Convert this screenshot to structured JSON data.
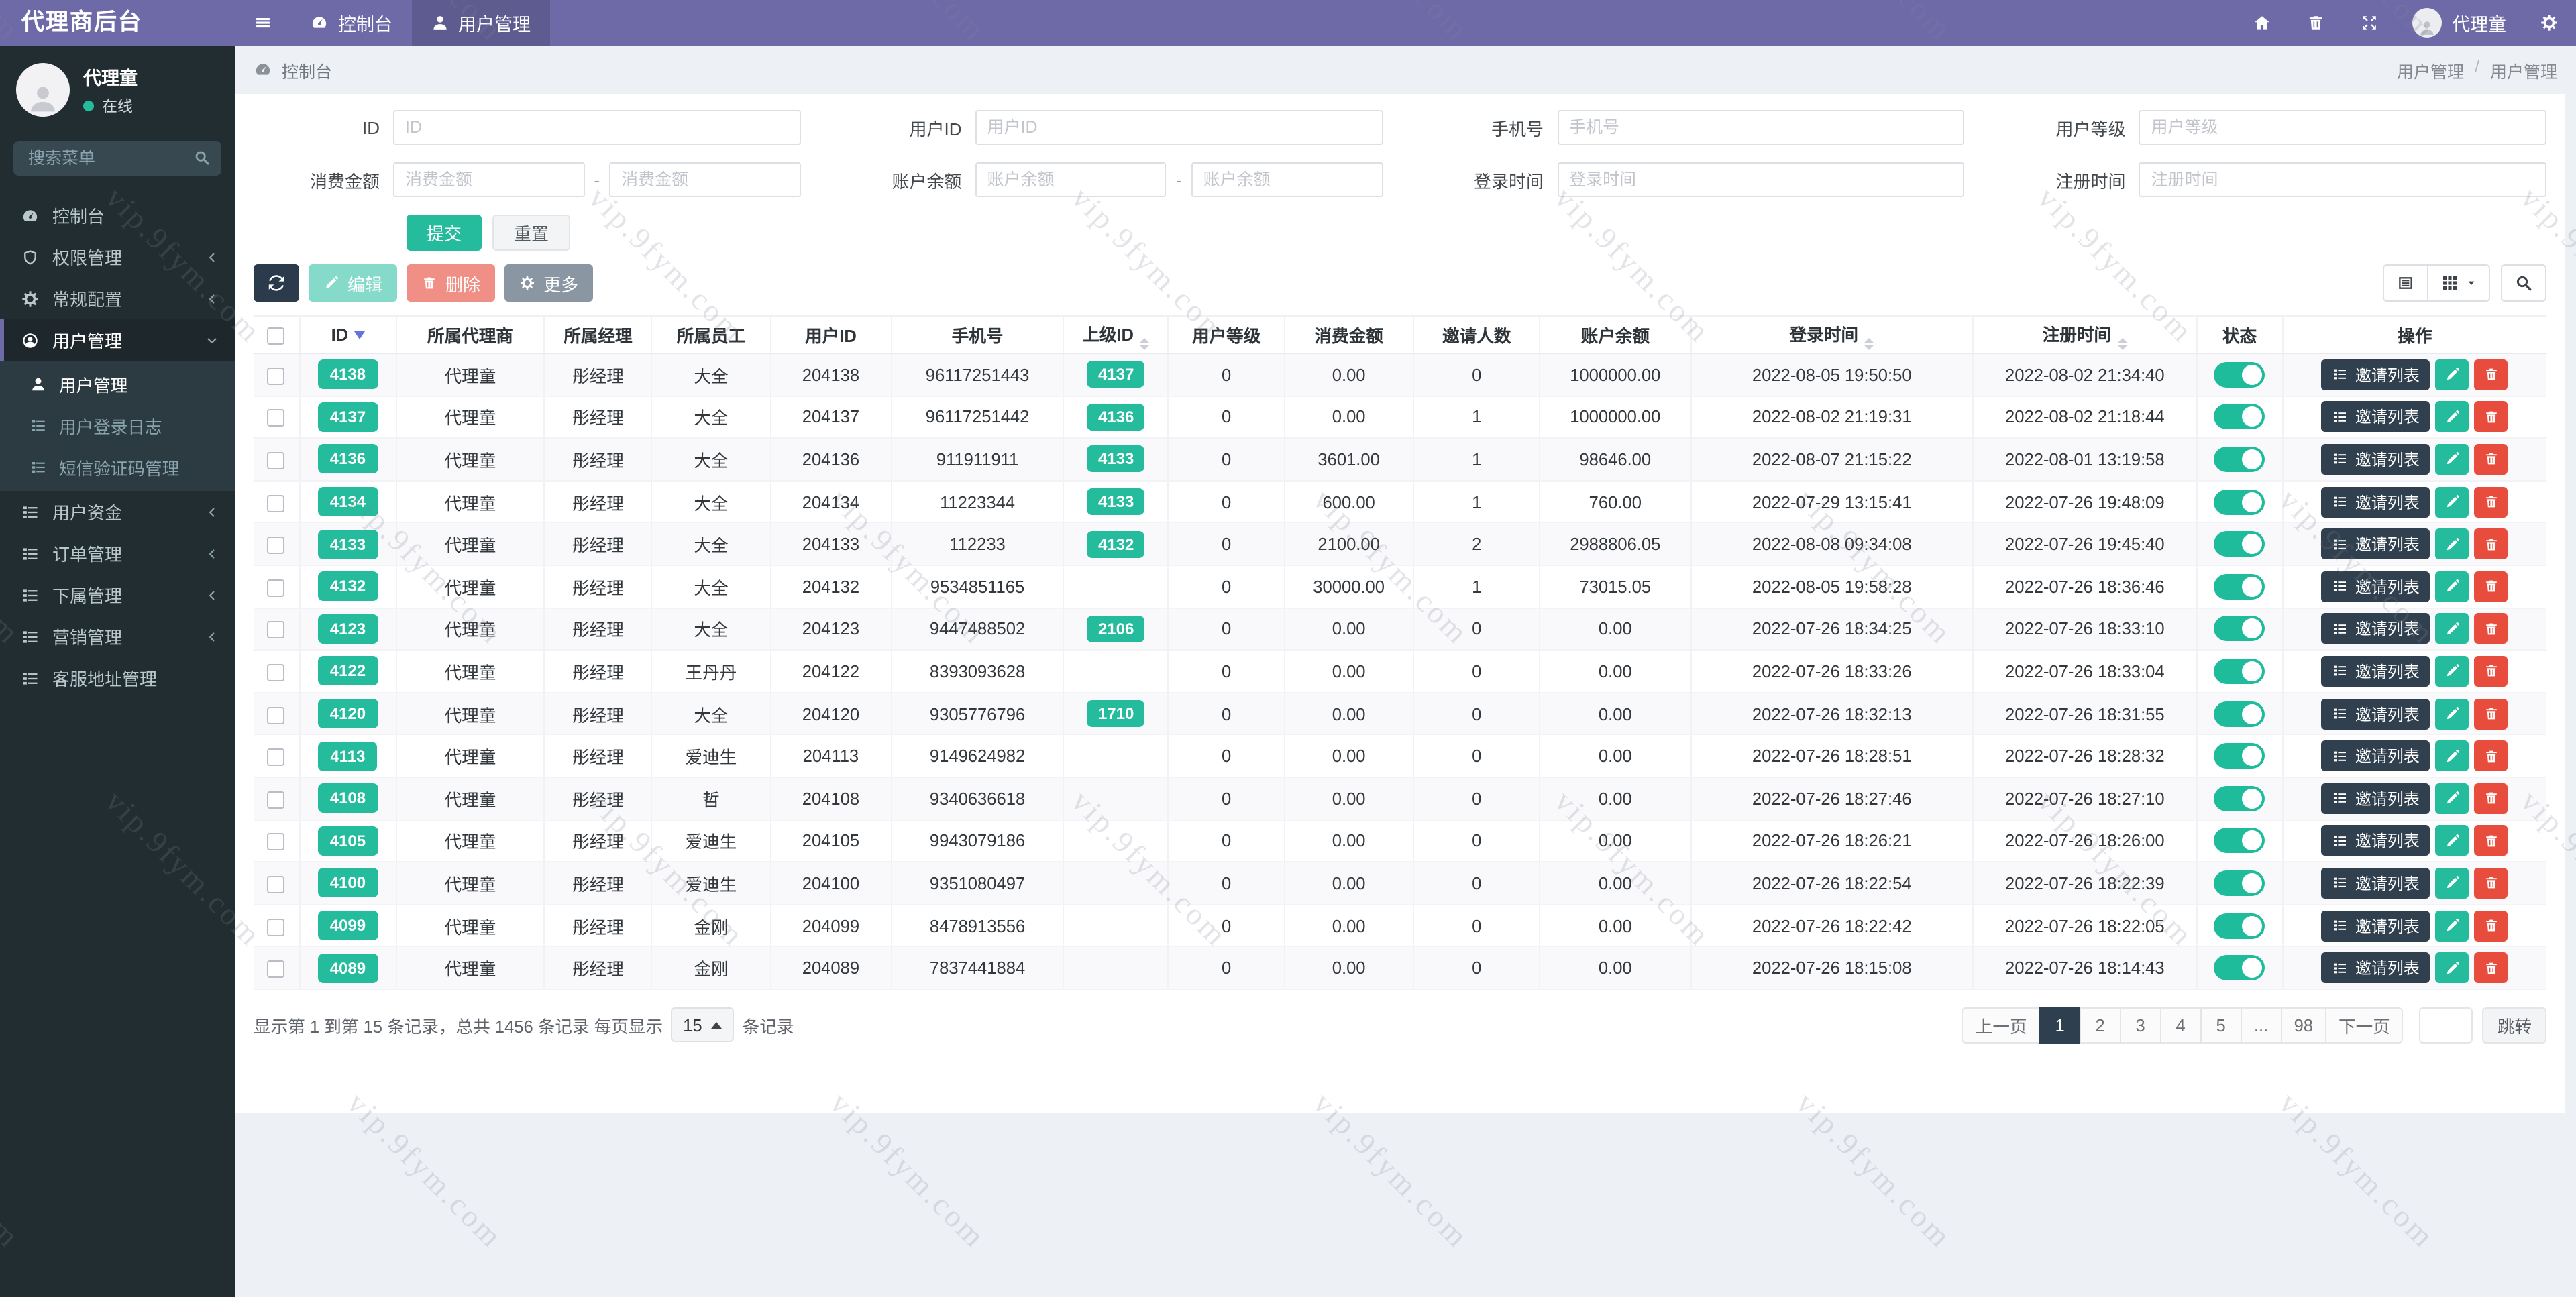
{
  "colors": {
    "navbar_purple": "#6e6aa8",
    "sidebar_dark": "#222d32",
    "accent_teal": "#25bc9d",
    "navy": "#2e3f50",
    "danger_red": "#e74c3c",
    "page_bg": "#edf0f5"
  },
  "watermark": {
    "text": "vip.9fym.com"
  },
  "navbar": {
    "brand": "代理商后台",
    "items": [
      {
        "label": "控制台",
        "icon": "gauge",
        "active": false
      },
      {
        "label": "用户管理",
        "icon": "user",
        "active": true
      }
    ],
    "user_name": "代理童"
  },
  "sidebar": {
    "user_name": "代理童",
    "user_status": "在线",
    "search_placeholder": "搜索菜单",
    "menu": [
      {
        "label": "控制台",
        "icon": "gauge"
      },
      {
        "label": "权限管理",
        "icon": "shield",
        "chevron": "left"
      },
      {
        "label": "常规配置",
        "icon": "gear",
        "chevron": "left"
      },
      {
        "label": "用户管理",
        "icon": "user-circle",
        "chevron": "down",
        "active": true,
        "children": [
          {
            "label": "用户管理",
            "icon": "user",
            "active": true
          },
          {
            "label": "用户登录日志",
            "icon": "list"
          },
          {
            "label": "短信验证码管理",
            "icon": "list"
          }
        ]
      },
      {
        "label": "用户资金",
        "icon": "list",
        "chevron": "left"
      },
      {
        "label": "订单管理",
        "icon": "list",
        "chevron": "left"
      },
      {
        "label": "下属管理",
        "icon": "list",
        "chevron": "left"
      },
      {
        "label": "营销管理",
        "icon": "list",
        "chevron": "left"
      },
      {
        "label": "客服地址管理",
        "icon": "list"
      }
    ]
  },
  "breadcrumb": {
    "location": "控制台",
    "trail": [
      "用户管理",
      "用户管理"
    ]
  },
  "filters": {
    "fields_row1": [
      {
        "label": "ID",
        "placeholder": "ID"
      },
      {
        "label": "用户ID",
        "placeholder": "用户ID"
      },
      {
        "label": "手机号",
        "placeholder": "手机号"
      },
      {
        "label": "用户等级",
        "placeholder": "用户等级"
      }
    ],
    "fields_row2": [
      {
        "label": "消费金额",
        "placeholder": "消费金额",
        "range": true
      },
      {
        "label": "账户余额",
        "placeholder": "账户余额",
        "range": true
      },
      {
        "label": "登录时间",
        "placeholder": "登录时间",
        "range": false
      },
      {
        "label": "注册时间",
        "placeholder": "注册时间",
        "range": false
      }
    ],
    "submit_label": "提交",
    "reset_label": "重置"
  },
  "toolbar": {
    "edit_label": "编辑",
    "delete_label": "删除",
    "more_label": "更多"
  },
  "table": {
    "columns": [
      {
        "label": "ID",
        "sort": "desc"
      },
      {
        "label": "所属代理商"
      },
      {
        "label": "所属经理"
      },
      {
        "label": "所属员工"
      },
      {
        "label": "用户ID"
      },
      {
        "label": "手机号"
      },
      {
        "label": "上级ID",
        "sort": "both"
      },
      {
        "label": "用户等级"
      },
      {
        "label": "消费金额"
      },
      {
        "label": "邀请人数"
      },
      {
        "label": "账户余额"
      },
      {
        "label": "登录时间",
        "sort": "both"
      },
      {
        "label": "注册时间",
        "sort": "both"
      },
      {
        "label": "状态"
      },
      {
        "label": "操作"
      }
    ],
    "invite_button_label": "邀请列表",
    "rows": [
      {
        "id": "4138",
        "agent": "代理童",
        "manager": "彤经理",
        "staff": "大全",
        "user_id": "204138",
        "phone": "96117251443",
        "parent_id": "4137",
        "level": "0",
        "consume": "0.00",
        "invites": "0",
        "balance": "1000000.00",
        "login_time": "2022-08-05 19:50:50",
        "reg_time": "2022-08-02 21:34:40",
        "status_on": true
      },
      {
        "id": "4137",
        "agent": "代理童",
        "manager": "彤经理",
        "staff": "大全",
        "user_id": "204137",
        "phone": "96117251442",
        "parent_id": "4136",
        "level": "0",
        "consume": "0.00",
        "invites": "1",
        "balance": "1000000.00",
        "login_time": "2022-08-02 21:19:31",
        "reg_time": "2022-08-02 21:18:44",
        "status_on": true
      },
      {
        "id": "4136",
        "agent": "代理童",
        "manager": "彤经理",
        "staff": "大全",
        "user_id": "204136",
        "phone": "911911911",
        "parent_id": "4133",
        "level": "0",
        "consume": "3601.00",
        "invites": "1",
        "balance": "98646.00",
        "login_time": "2022-08-07 21:15:22",
        "reg_time": "2022-08-01 13:19:58",
        "status_on": true
      },
      {
        "id": "4134",
        "agent": "代理童",
        "manager": "彤经理",
        "staff": "大全",
        "user_id": "204134",
        "phone": "11223344",
        "parent_id": "4133",
        "level": "0",
        "consume": "600.00",
        "invites": "1",
        "balance": "760.00",
        "login_time": "2022-07-29 13:15:41",
        "reg_time": "2022-07-26 19:48:09",
        "status_on": true
      },
      {
        "id": "4133",
        "agent": "代理童",
        "manager": "彤经理",
        "staff": "大全",
        "user_id": "204133",
        "phone": "112233",
        "parent_id": "4132",
        "level": "0",
        "consume": "2100.00",
        "invites": "2",
        "balance": "2988806.05",
        "login_time": "2022-08-08 09:34:08",
        "reg_time": "2022-07-26 19:45:40",
        "status_on": true
      },
      {
        "id": "4132",
        "agent": "代理童",
        "manager": "彤经理",
        "staff": "大全",
        "user_id": "204132",
        "phone": "9534851165",
        "parent_id": "",
        "level": "0",
        "consume": "30000.00",
        "invites": "1",
        "balance": "73015.05",
        "login_time": "2022-08-05 19:58:28",
        "reg_time": "2022-07-26 18:36:46",
        "status_on": true
      },
      {
        "id": "4123",
        "agent": "代理童",
        "manager": "彤经理",
        "staff": "大全",
        "user_id": "204123",
        "phone": "9447488502",
        "parent_id": "2106",
        "level": "0",
        "consume": "0.00",
        "invites": "0",
        "balance": "0.00",
        "login_time": "2022-07-26 18:34:25",
        "reg_time": "2022-07-26 18:33:10",
        "status_on": true
      },
      {
        "id": "4122",
        "agent": "代理童",
        "manager": "彤经理",
        "staff": "王丹丹",
        "user_id": "204122",
        "phone": "8393093628",
        "parent_id": "",
        "level": "0",
        "consume": "0.00",
        "invites": "0",
        "balance": "0.00",
        "login_time": "2022-07-26 18:33:26",
        "reg_time": "2022-07-26 18:33:04",
        "status_on": true
      },
      {
        "id": "4120",
        "agent": "代理童",
        "manager": "彤经理",
        "staff": "大全",
        "user_id": "204120",
        "phone": "9305776796",
        "parent_id": "1710",
        "level": "0",
        "consume": "0.00",
        "invites": "0",
        "balance": "0.00",
        "login_time": "2022-07-26 18:32:13",
        "reg_time": "2022-07-26 18:31:55",
        "status_on": true
      },
      {
        "id": "4113",
        "agent": "代理童",
        "manager": "彤经理",
        "staff": "爱迪生",
        "user_id": "204113",
        "phone": "9149624982",
        "parent_id": "",
        "level": "0",
        "consume": "0.00",
        "invites": "0",
        "balance": "0.00",
        "login_time": "2022-07-26 18:28:51",
        "reg_time": "2022-07-26 18:28:32",
        "status_on": true
      },
      {
        "id": "4108",
        "agent": "代理童",
        "manager": "彤经理",
        "staff": "哲",
        "user_id": "204108",
        "phone": "9340636618",
        "parent_id": "",
        "level": "0",
        "consume": "0.00",
        "invites": "0",
        "balance": "0.00",
        "login_time": "2022-07-26 18:27:46",
        "reg_time": "2022-07-26 18:27:10",
        "status_on": true
      },
      {
        "id": "4105",
        "agent": "代理童",
        "manager": "彤经理",
        "staff": "爱迪生",
        "user_id": "204105",
        "phone": "9943079186",
        "parent_id": "",
        "level": "0",
        "consume": "0.00",
        "invites": "0",
        "balance": "0.00",
        "login_time": "2022-07-26 18:26:21",
        "reg_time": "2022-07-26 18:26:00",
        "status_on": true
      },
      {
        "id": "4100",
        "agent": "代理童",
        "manager": "彤经理",
        "staff": "爱迪生",
        "user_id": "204100",
        "phone": "9351080497",
        "parent_id": "",
        "level": "0",
        "consume": "0.00",
        "invites": "0",
        "balance": "0.00",
        "login_time": "2022-07-26 18:22:54",
        "reg_time": "2022-07-26 18:22:39",
        "status_on": true
      },
      {
        "id": "4099",
        "agent": "代理童",
        "manager": "彤经理",
        "staff": "金刚",
        "user_id": "204099",
        "phone": "8478913556",
        "parent_id": "",
        "level": "0",
        "consume": "0.00",
        "invites": "0",
        "balance": "0.00",
        "login_time": "2022-07-26 18:22:42",
        "reg_time": "2022-07-26 18:22:05",
        "status_on": true
      },
      {
        "id": "4089",
        "agent": "代理童",
        "manager": "彤经理",
        "staff": "金刚",
        "user_id": "204089",
        "phone": "7837441884",
        "parent_id": "",
        "level": "0",
        "consume": "0.00",
        "invites": "0",
        "balance": "0.00",
        "login_time": "2022-07-26 18:15:08",
        "reg_time": "2022-07-26 18:14:43",
        "status_on": true
      }
    ]
  },
  "pagination": {
    "info_prefix": "显示第 1 到第 15 条记录，总共 1456 条记录 每页显示",
    "page_size": "15",
    "info_suffix": "条记录",
    "prev_label": "上一页",
    "pages": [
      "1",
      "2",
      "3",
      "4",
      "5",
      "...",
      "98"
    ],
    "active_page": "1",
    "next_label": "下一页",
    "jump_label": "跳转"
  }
}
